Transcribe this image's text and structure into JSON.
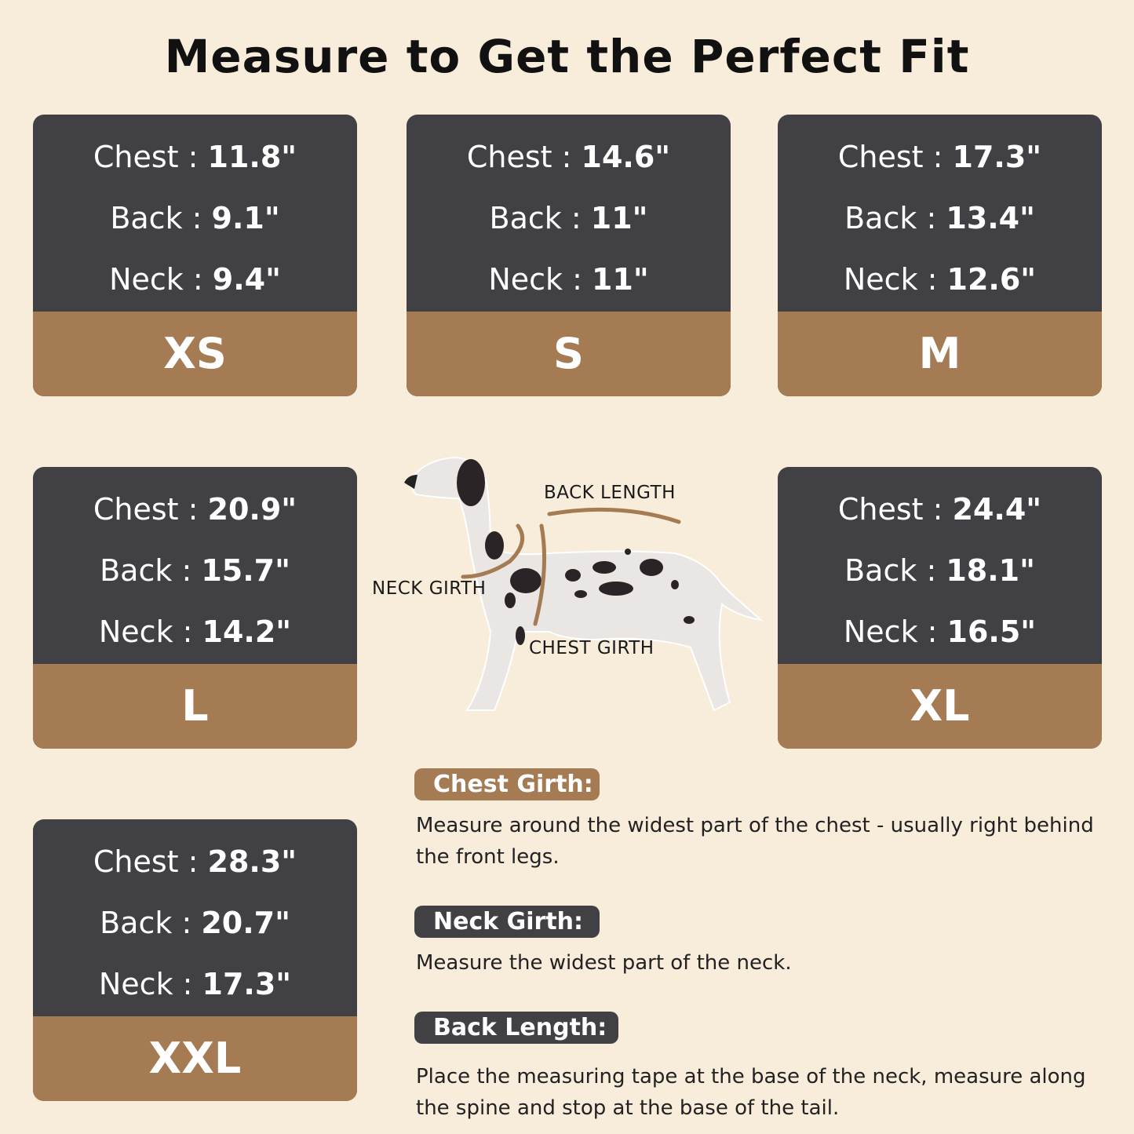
{
  "title": "Measure to Get the Perfect Fit",
  "sizes": [
    {
      "size": "XS",
      "chest": "11.8\"",
      "back": "9.1\"",
      "neck": "9.4\""
    },
    {
      "size": "S",
      "chest": "14.6\"",
      "back": "11\"",
      "neck": "11\""
    },
    {
      "size": "M",
      "chest": "17.3\"",
      "back": "13.4\"",
      "neck": "12.6\""
    },
    {
      "size": "L",
      "chest": "20.9\"",
      "back": "15.7\"",
      "neck": "14.2\""
    },
    {
      "size": "XL",
      "chest": "24.4\"",
      "back": "18.1\"",
      "neck": "16.5\""
    },
    {
      "size": "XXL",
      "chest": "28.3\"",
      "back": "20.7\"",
      "neck": "17.3\""
    }
  ],
  "labels": {
    "chest": "Chest : ",
    "back": "Back : ",
    "neck": "Neck : "
  },
  "diagram": {
    "back_length": "BACK LENGTH",
    "neck_girth": "NECK GIRTH",
    "chest_girth": "CHEST GIRTH"
  },
  "guide": [
    {
      "heading": "Chest Girth:",
      "text": "Measure around the widest part of the chest - usually right behind the front legs."
    },
    {
      "heading": "Neck Girth:",
      "text": "Measure the widest part of the neck."
    },
    {
      "heading": "Back Length:",
      "text": "Place the measuring tape at the base of the neck, measure along the spine and stop at the base of the tail."
    }
  ],
  "colors": {
    "background": "#f8ecdb",
    "card": "#414145",
    "accent": "#a47b53"
  }
}
